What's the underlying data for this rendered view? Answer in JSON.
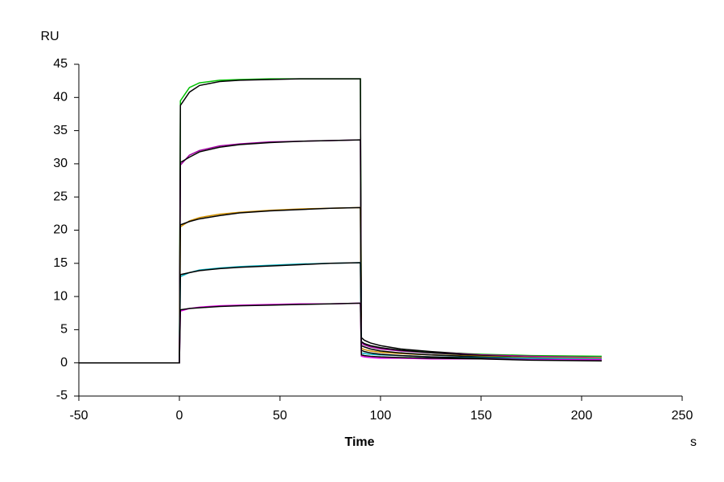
{
  "chart_data": {
    "type": "line",
    "y_label": "RU",
    "x_label": "Time",
    "x_unit": "s",
    "x": [
      -50,
      -25,
      0,
      0.5,
      5,
      10,
      20,
      30,
      45,
      60,
      75,
      90,
      90.5,
      92,
      95,
      100,
      110,
      125,
      150,
      175,
      210
    ],
    "series": [
      {
        "color": "#00c000",
        "values": [
          0,
          0,
          0,
          39.5,
          41.5,
          42.2,
          42.6,
          42.7,
          42.8,
          42.8,
          42.8,
          42.8,
          3.0,
          2.8,
          2.5,
          2.2,
          1.9,
          1.6,
          1.3,
          1.1,
          1.0
        ]
      },
      {
        "color": "#000000",
        "values": [
          0,
          0,
          0,
          38.8,
          40.8,
          41.8,
          42.4,
          42.6,
          42.7,
          42.8,
          42.8,
          42.8,
          3.8,
          3.4,
          3.0,
          2.6,
          2.1,
          1.7,
          1.2,
          0.9,
          0.6
        ]
      },
      {
        "color": "#a000a0",
        "values": [
          0,
          0,
          0,
          29.8,
          31.3,
          32.0,
          32.7,
          33.0,
          33.3,
          33.4,
          33.5,
          33.6,
          3.0,
          2.7,
          2.4,
          2.1,
          1.8,
          1.5,
          1.2,
          1.0,
          0.8
        ]
      },
      {
        "color": "#000000",
        "values": [
          0,
          0,
          0,
          30.2,
          31.0,
          31.8,
          32.5,
          32.9,
          33.2,
          33.4,
          33.5,
          33.6,
          3.2,
          2.9,
          2.6,
          2.3,
          1.9,
          1.5,
          1.1,
          0.8,
          0.6
        ]
      },
      {
        "color": "#d09000",
        "values": [
          0,
          0,
          0,
          20.5,
          21.4,
          21.9,
          22.4,
          22.7,
          23.0,
          23.2,
          23.3,
          23.4,
          2.2,
          2.0,
          1.8,
          1.6,
          1.4,
          1.2,
          1.0,
          0.8,
          0.7
        ]
      },
      {
        "color": "#000000",
        "values": [
          0,
          0,
          0,
          20.8,
          21.3,
          21.7,
          22.2,
          22.6,
          22.9,
          23.1,
          23.3,
          23.4,
          2.6,
          2.4,
          2.1,
          1.8,
          1.5,
          1.2,
          0.9,
          0.7,
          0.5
        ]
      },
      {
        "color": "#00b0c0",
        "values": [
          0,
          0,
          0,
          13.0,
          13.6,
          14.0,
          14.3,
          14.5,
          14.7,
          14.9,
          15.0,
          15.1,
          1.5,
          1.4,
          1.3,
          1.2,
          1.1,
          0.9,
          0.8,
          0.7,
          0.6
        ]
      },
      {
        "color": "#000000",
        "values": [
          0,
          0,
          0,
          13.3,
          13.6,
          13.9,
          14.2,
          14.4,
          14.6,
          14.8,
          15.0,
          15.1,
          1.9,
          1.7,
          1.5,
          1.3,
          1.1,
          0.9,
          0.7,
          0.5,
          0.4
        ]
      },
      {
        "color": "#e000e0",
        "values": [
          0,
          0,
          0,
          7.8,
          8.2,
          8.4,
          8.6,
          8.7,
          8.8,
          8.9,
          8.9,
          9.0,
          1.0,
          0.9,
          0.8,
          0.7,
          0.7,
          0.6,
          0.6,
          0.5,
          0.5
        ]
      },
      {
        "color": "#000000",
        "values": [
          0,
          0,
          0,
          8.0,
          8.2,
          8.3,
          8.5,
          8.6,
          8.7,
          8.8,
          8.9,
          9.0,
          1.2,
          1.1,
          1.0,
          0.9,
          0.8,
          0.7,
          0.6,
          0.4,
          0.3
        ]
      }
    ],
    "xlim": [
      -50,
      250
    ],
    "xticks": [
      -50,
      0,
      50,
      100,
      150,
      200,
      250
    ],
    "ylim": [
      -5,
      45
    ],
    "yticks": [
      -5,
      0,
      5,
      10,
      15,
      20,
      25,
      30,
      35,
      40,
      45
    ]
  }
}
